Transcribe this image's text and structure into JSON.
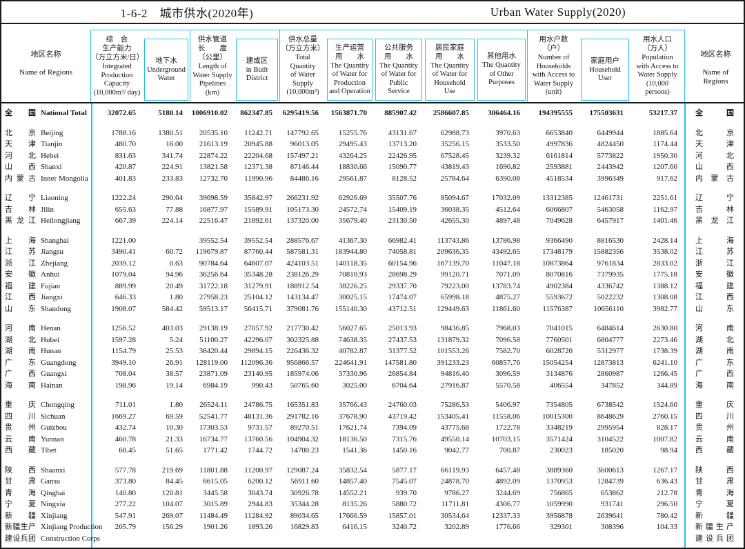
{
  "title": {
    "cn": "1-6-2　城市供水(2020年)",
    "en": "Urban Water Supply(2020)"
  },
  "header": {
    "region_left": {
      "cn": "地区名称",
      "en": "Name of Regions"
    },
    "region_right": {
      "cn": "地区名称",
      "en": "Name of\nRegions"
    },
    "cols": [
      {
        "cn": "综　合\n生产能力\n（万立方米/日）",
        "en": "Integrated\nProduction\nCapacity\n(10,000m³/ day)",
        "style": "tall"
      },
      {
        "cn": "地下水",
        "en": "Underground\nWater",
        "style": "box"
      },
      {
        "cn": "供水管道\n长　　度\n（公里）",
        "en": "Length of\nWater Supply\nPipelines\n(km)",
        "style": "tall"
      },
      {
        "cn": "建成区",
        "en": "in Built\nDistrict",
        "style": "box"
      },
      {
        "cn": "供水总量\n（万立方米）",
        "en": "Total\nQuantity\nof Water\nSupply\n(10,000m³)",
        "style": "tall"
      },
      {
        "cn": "生产运营\n用　　水",
        "en": "The Quantity\nof Water for\nProduction\nand Operation",
        "style": "box"
      },
      {
        "cn": "公共服务\n用　　水",
        "en": "The Quantity\nof Water for\nPublic\nService",
        "style": "box"
      },
      {
        "cn": "居民家庭\n用　　水",
        "en": "The Quantity\nof Water for\nHousehold\nUse",
        "style": "box"
      },
      {
        "cn": "其他用水",
        "en": "The Quantity\nof  Other\nPurposes",
        "style": "box"
      },
      {
        "cn": "用水户数\n（户）",
        "en": "Number of\nHouseholds\nwith Access to\nWater Supply\n(unit)",
        "style": "tall"
      },
      {
        "cn": "家庭用户",
        "en": "Household\nUser",
        "style": "box"
      },
      {
        "cn": "用水人口\n（万人）",
        "en": "Population\nwith Access to\nWater Supply\n(10,000\npersons)",
        "style": "tall"
      }
    ]
  },
  "chart_data": {
    "type": "table",
    "title": "1-6-2 城市供水(2020年) / Urban Water Supply(2020)",
    "columns": [
      "Integrated Production Capacity (10,000m³/day)",
      "Underground Water",
      "Length of Water Supply Pipelines (km)",
      "in Built District",
      "Total Quantity of Water Supply (10,000m³)",
      "Water for Production and Operation",
      "Water for Public Service",
      "Water for Household Use",
      "Other Purposes",
      "Number of Households with Access to Water Supply (unit)",
      "Household User",
      "Population with Access to Water Supply (10,000 persons)"
    ]
  },
  "rows": [
    {
      "cn": "全国",
      "en": "National Total",
      "bold": true,
      "gap": false,
      "v": [
        "32072.65",
        "5180.14",
        "1006910.02",
        "862347.85",
        "6295419.56",
        "1563871.70",
        "885907.42",
        "2586607.85",
        "306464.16",
        "194395555",
        "175503631",
        "53217.37"
      ]
    },
    {
      "cn": "北京",
      "en": "Beijing",
      "gap": true,
      "v": [
        "1788.16",
        "1380.51",
        "20535.10",
        "11242.71",
        "147792.65",
        "15255.76",
        "43131.67",
        "62988.73",
        "3970.63",
        "6653840",
        "6449944",
        "1885.64"
      ]
    },
    {
      "cn": "天津",
      "en": "Tianjin",
      "v": [
        "480.70",
        "16.00",
        "21613.19",
        "20945.88",
        "96013.05",
        "29495.43",
        "13713.20",
        "35256.15",
        "3533.50",
        "4997836",
        "4824450",
        "1174.44"
      ]
    },
    {
      "cn": "河北",
      "en": "Hebei",
      "v": [
        "831.63",
        "341.74",
        "22874.22",
        "22204.68",
        "157497.21",
        "43264.25",
        "22426.95",
        "67528.45",
        "3239.32",
        "6161814",
        "5773822",
        "1950.30"
      ]
    },
    {
      "cn": "山西",
      "en": "Shanxi",
      "v": [
        "420.87",
        "224.91",
        "13821.58",
        "12371.38",
        "87146.44",
        "18830.66",
        "15090.77",
        "43819.43",
        "1690.82",
        "2593881",
        "2443942",
        "1207.60"
      ]
    },
    {
      "cn": "内蒙古",
      "en": "Inner Mongolia",
      "v": [
        "401.83",
        "233.83",
        "12732.70",
        "11990.96",
        "84486.16",
        "29561.87",
        "8128.52",
        "25784.64",
        "6390.08",
        "4518534",
        "3996349",
        "917.62"
      ]
    },
    {
      "cn": "辽宁",
      "en": "Liaoning",
      "gap": true,
      "v": [
        "1222.24",
        "290.64",
        "39698.59",
        "35842.97",
        "266231.92",
        "62926.69",
        "35507.76",
        "85094.67",
        "17032.09",
        "13312385",
        "12461731",
        "2251.61"
      ]
    },
    {
      "cn": "吉林",
      "en": "Jilin",
      "v": [
        "655.63",
        "77.88",
        "16877.97",
        "15589.91",
        "105173.30",
        "24572.74",
        "15409.19",
        "36038.35",
        "4512.64",
        "6066807",
        "5463058",
        "1162.97"
      ]
    },
    {
      "cn": "黑龙江",
      "en": "Heilongjiang",
      "v": [
        "667.39",
        "224.14",
        "22516.47",
        "21892.61",
        "137320.00",
        "35679.40",
        "23130.50",
        "42655.30",
        "4897.48",
        "7049628",
        "6457917",
        "1401.46"
      ]
    },
    {
      "cn": "上海",
      "en": "Shanghai",
      "gap": true,
      "v": [
        "1221.00",
        "",
        "39552.54",
        "39552.54",
        "288576.67",
        "41367.30",
        "66982.41",
        "113743.86",
        "13786.98",
        "9366490",
        "8816530",
        "2428.14"
      ]
    },
    {
      "cn": "江苏",
      "en": "Jiangsu",
      "v": [
        "3490.41",
        "60.72",
        "119679.87",
        "87760.44",
        "587581.31",
        "183944.80",
        "74058.81",
        "209636.35",
        "43492.65",
        "17348179",
        "15882356",
        "3538.02"
      ]
    },
    {
      "cn": "浙江",
      "en": "Zhejiang",
      "v": [
        "2039.12",
        "0.63",
        "90784.64",
        "64607.07",
        "424103.51",
        "140118.35",
        "60154.96",
        "167139.70",
        "11047.18",
        "10873864",
        "9761834",
        "2833.02"
      ]
    },
    {
      "cn": "安徽",
      "en": "Anhui",
      "v": [
        "1079.04",
        "94.96",
        "36256.64",
        "35348.28",
        "238126.29",
        "70810.93",
        "28698.29",
        "99120.71",
        "7071.09",
        "8070816",
        "7379935",
        "1775.18"
      ]
    },
    {
      "cn": "福建",
      "en": "Fujian",
      "v": [
        "889.99",
        "20.49",
        "31722.18",
        "31279.91",
        "188912.54",
        "38226.25",
        "29337.70",
        "79223.00",
        "13783.74",
        "4902384",
        "4336742",
        "1388.12"
      ]
    },
    {
      "cn": "江西",
      "en": "Jiangxi",
      "v": [
        "646.33",
        "1.80",
        "27958.23",
        "25104.12",
        "143134.47",
        "30025.15",
        "17474.07",
        "65998.18",
        "4875.27",
        "5593672",
        "5022232",
        "1308.08"
      ]
    },
    {
      "cn": "山东",
      "en": "Shandong",
      "v": [
        "1908.07",
        "584.42",
        "59513.17",
        "56415.71",
        "379081.76",
        "155140.30",
        "43712.51",
        "129449.63",
        "11861.60",
        "11576387",
        "10656110",
        "3982.77"
      ]
    },
    {
      "cn": "河南",
      "en": "Henan",
      "gap": true,
      "v": [
        "1256.52",
        "403.03",
        "29138.19",
        "27057.92",
        "217730.42",
        "56027.65",
        "25013.93",
        "98436.85",
        "7968.03",
        "7041015",
        "6484614",
        "2630.80"
      ]
    },
    {
      "cn": "湖北",
      "en": "Hubei",
      "v": [
        "1597.28",
        "5.24",
        "51100.27",
        "42296.07",
        "302325.88",
        "74638.35",
        "27437.53",
        "131879.32",
        "7096.58",
        "7760501",
        "6804777",
        "2273.46"
      ]
    },
    {
      "cn": "湖南",
      "en": "Hunan",
      "v": [
        "1154.79",
        "25.53",
        "38420.44",
        "29894.15",
        "226436.32",
        "40782.87",
        "31377.52",
        "101553.26",
        "7582.70",
        "6028720",
        "5312977",
        "1738.39"
      ]
    },
    {
      "cn": "广东",
      "en": "Guangdong",
      "v": [
        "3949.10",
        "26.91",
        "128119.00",
        "112096.36",
        "956866.57",
        "224641.91",
        "147581.80",
        "391233.23",
        "60857.76",
        "15054254",
        "12873813",
        "6241.10"
      ]
    },
    {
      "cn": "广西",
      "en": "Guangxi",
      "v": [
        "708.04",
        "38.57",
        "23871.09",
        "23140.95",
        "185974.06",
        "37330.96",
        "26854.84",
        "94816.40",
        "3096.59",
        "3134876",
        "2860987",
        "1266.45"
      ]
    },
    {
      "cn": "海南",
      "en": "Hainan",
      "v": [
        "198.96",
        "19.14",
        "6984.19",
        "990.43",
        "50765.60",
        "3025.00",
        "6704.64",
        "27916.87",
        "5570.58",
        "406554",
        "347852",
        "344.89"
      ]
    },
    {
      "cn": "重庆",
      "en": "Chongqing",
      "gap": true,
      "v": [
        "711.01",
        "1.80",
        "26524.11",
        "24786.75",
        "165351.83",
        "35766.43",
        "24760.03",
        "75286.53",
        "5406.97",
        "7354805",
        "6738542",
        "1524.60"
      ]
    },
    {
      "cn": "四川",
      "en": "Sichuan",
      "v": [
        "1669.27",
        "69.59",
        "52541.77",
        "48131.36",
        "291782.16",
        "37678.90",
        "43719.42",
        "153405.41",
        "11558.06",
        "10015300",
        "8648629",
        "2760.15"
      ]
    },
    {
      "cn": "贵州",
      "en": "Guizhou",
      "v": [
        "432.74",
        "10.30",
        "17303.53",
        "9731.57",
        "89270.51",
        "17621.74",
        "7394.09",
        "43775.68",
        "1722.78",
        "3348219",
        "2995954",
        "828.17"
      ]
    },
    {
      "cn": "云南",
      "en": "Yunnan",
      "v": [
        "460.78",
        "21.33",
        "16734.77",
        "13760.56",
        "104904.32",
        "18136.50",
        "7315.76",
        "49550.14",
        "10703.15",
        "3571424",
        "3104522",
        "1007.82"
      ]
    },
    {
      "cn": "西藏",
      "en": "Tibet",
      "v": [
        "68.45",
        "51.65",
        "1771.42",
        "1744.72",
        "14700.23",
        "1541.36",
        "1450.16",
        "9042.77",
        "700.87",
        "230023",
        "185020",
        "98.94"
      ]
    },
    {
      "cn": "陕西",
      "en": "Shaanxi",
      "gap": true,
      "v": [
        "577.78",
        "219.69",
        "11801.88",
        "11200.97",
        "129087.24",
        "35832.54",
        "5877.17",
        "66119.93",
        "6457.48",
        "3889360",
        "3600613",
        "1267.17"
      ]
    },
    {
      "cn": "甘肃",
      "en": "Gansu",
      "v": [
        "373.80",
        "84.45",
        "6615.05",
        "6200.12",
        "56911.60",
        "14857.40",
        "7545.07",
        "24878.70",
        "4892.09",
        "1370953",
        "1284739",
        "636.43"
      ]
    },
    {
      "cn": "青海",
      "en": "Qinghai",
      "v": [
        "140.80",
        "120.81",
        "3445.58",
        "3043.74",
        "30926.78",
        "14552.21",
        "939.70",
        "9786.27",
        "3244.69",
        "756865",
        "653862",
        "212.78"
      ]
    },
    {
      "cn": "宁夏",
      "en": "Ningxia",
      "v": [
        "277.22",
        "104.07",
        "3015.89",
        "2944.83",
        "35344.28",
        "8135.26",
        "5880.72",
        "11711.81",
        "4306.77",
        "1059990",
        "931741",
        "296.50"
      ]
    },
    {
      "cn": "新疆",
      "en": "Xinjiang",
      "v": [
        "547.91",
        "269.07",
        "11484.49",
        "11284.92",
        "89034.65",
        "17666.59",
        "15857.01",
        "30534.64",
        "12337.33",
        "3956878",
        "2639641",
        "780.42"
      ]
    },
    {
      "cn": "新疆生产",
      "cn2": "建设兵团",
      "en": "Xinjiang Production",
      "en2": "Construction Corps",
      "v": [
        "205.79",
        "156.29",
        "1901.26",
        "1893.26",
        "16829.83",
        "6416.15",
        "3240.72",
        "3202.89",
        "1776.66",
        "329301",
        "308396",
        "104.33"
      ]
    }
  ],
  "colors": {
    "grid_cyan": "#25c1ea",
    "line_black": "#1b1b1b"
  }
}
